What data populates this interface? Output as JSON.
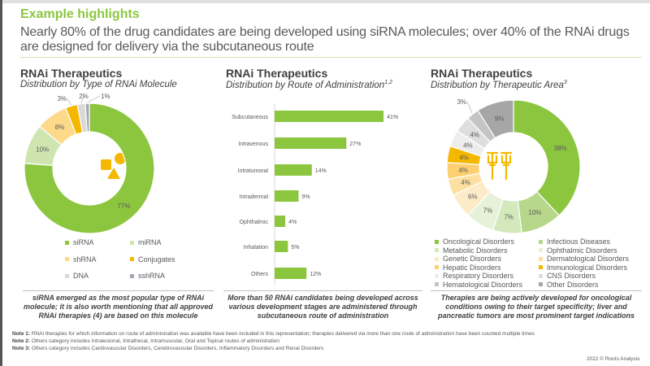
{
  "title": "Example highlights",
  "headline": "Nearly 80% of the drug candidates are being developed using siRNA molecules; over 40% of the RNAi drugs are designed for delivery via the subcutaneous route",
  "chart_data": [
    {
      "type": "pie",
      "title": "RNAi Therapeutics",
      "subtitle": "Distribution by Type of RNAi Molecule",
      "categories": [
        "siRNA",
        "miRNA",
        "shRNA",
        "Conjugates",
        "DNA",
        "sshRNA"
      ],
      "values": [
        77,
        10,
        8,
        3,
        2,
        1
      ],
      "labels": [
        "77%",
        "10%",
        "8%",
        "3%",
        "2%",
        "1%"
      ],
      "colors": [
        "#8cc63f",
        "#cfe5b0",
        "#fdd98a",
        "#f5b800",
        "#d9d9d9",
        "#a6a6b4"
      ],
      "legend": "bottom"
    },
    {
      "type": "bar",
      "title": "RNAi Therapeutics",
      "subtitle": "Distribution by Route of Administration",
      "subtitle_sup": "1,2",
      "categories": [
        "Subcutaneous",
        "Intravenous",
        "Intratumoral",
        "Intradermal",
        "Ophthalmic",
        "Inhalation",
        "Others"
      ],
      "values": [
        41,
        27,
        14,
        9,
        4,
        5,
        12
      ],
      "labels": [
        "41%",
        "27%",
        "14%",
        "9%",
        "4%",
        "5%",
        "12%"
      ],
      "color": "#8cc63f",
      "orientation": "horizontal"
    },
    {
      "type": "pie",
      "title": "RNAi Therapeutics",
      "subtitle": "Distribution by Therapeutic Area",
      "subtitle_sup": "3",
      "categories": [
        "Oncological Disorders",
        "Infectious Diseases",
        "Metabolic Disorders",
        "Ophthalmic Disorders",
        "Genetic Disorders",
        "Dermatological Disorders",
        "Hepatic Disorders",
        "Immunological Disorders",
        "Respiratory Disorders",
        "CNS Disorders",
        "Hematological Disorders",
        "Other Disorders"
      ],
      "values": [
        38,
        10,
        7,
        7,
        6,
        4,
        4,
        4,
        4,
        4,
        3,
        9
      ],
      "labels": [
        "38%",
        "10%",
        "7%",
        "7%",
        "6%",
        "4%",
        "4%",
        "4%",
        "4%",
        "4%",
        "3%",
        "9%"
      ],
      "colors": [
        "#8cc63f",
        "#b7d88a",
        "#d3e8bb",
        "#e6f1d9",
        "#fdebc8",
        "#fde0a0",
        "#fcd070",
        "#f5b800",
        "#ededed",
        "#dedede",
        "#c4c4c4",
        "#a6a6a6"
      ],
      "legend": "bottom"
    }
  ],
  "captions": [
    "siRNA emerged as the most popular type of RNAi molecule; it is also worth mentioning that all approved RNAi therapies (4) are based on this molecule",
    "More than 50 RNAi candidates being developed across various development stages are administered through subcutaneous route of administration",
    "Therapies are being actively developed for oncological conditions owing to their target specificity; liver and pancreatic tumors are most prominent target indications"
  ],
  "notes": [
    {
      "label": "Note 1:",
      "text": "RNAi therapies for which information on route of administration was available have been included in this representation; therapies delivered via more than one route of administration have been counted multiple times"
    },
    {
      "label": "Note 2:",
      "text": "Others category includes Intralesional, Intrathecal, Intramuscular, Oral and Topical routes of administration"
    },
    {
      "label": "Note 3:",
      "text": "Others category includes Cardiovascular Disorders, Cerebrovascular Disorders, Inflammatory Disorders and Renal Disorders"
    }
  ],
  "copyright": "2022 © Roots Analysis"
}
